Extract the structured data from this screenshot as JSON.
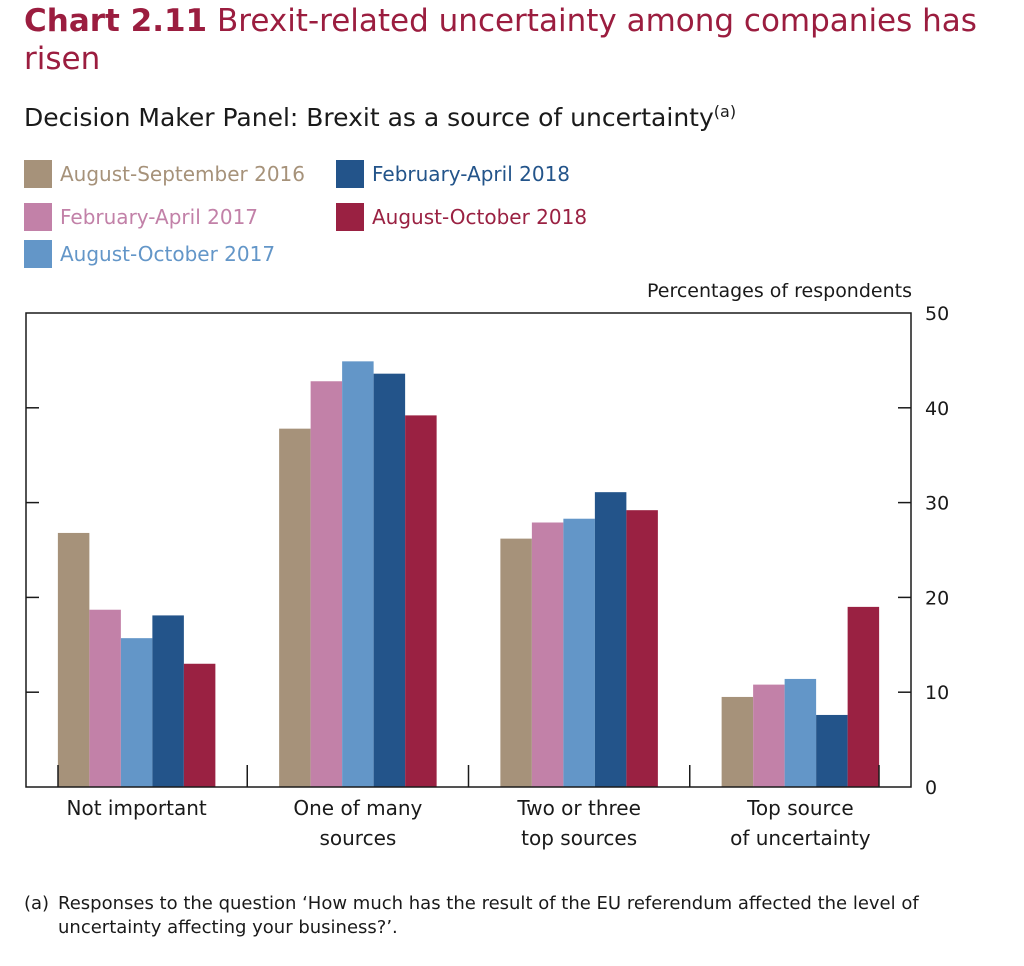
{
  "header": {
    "chart_number": "Chart 2.11",
    "title": "Brexit-related uncertainty among companies has risen",
    "subtitle": "Decision Maker Panel: Brexit as a source of uncertainty",
    "subtitle_note_marker": "(a)"
  },
  "footnote": {
    "marker": "(a)",
    "text": "Responses to the question ‘How much has the result of the EU referendum affected the level of uncertainty affecting your business?’."
  },
  "chart_data": {
    "type": "bar",
    "title": "Decision Maker Panel: Brexit as a source of uncertainty",
    "ylabel": "Percentages of respondents",
    "y_axis_side": "right",
    "ylim": [
      0,
      50
    ],
    "yticks": [
      0,
      10,
      20,
      30,
      40,
      50
    ],
    "grid": false,
    "legend_position": "top-left",
    "categories": [
      [
        "Not important"
      ],
      [
        "One of many",
        "sources"
      ],
      [
        "Two or three",
        "top sources"
      ],
      [
        "Top source",
        "of uncertainty"
      ]
    ],
    "series": [
      {
        "name": "August-September 2016",
        "color": "#a6927a",
        "values": [
          26.8,
          37.8,
          26.2,
          9.5
        ]
      },
      {
        "name": "February-April 2017",
        "color": "#c281a8",
        "values": [
          18.7,
          42.8,
          27.9,
          10.8
        ]
      },
      {
        "name": "August-October 2017",
        "color": "#6396c8",
        "values": [
          15.7,
          44.9,
          28.3,
          11.4
        ]
      },
      {
        "name": "February-April 2018",
        "color": "#23548a",
        "values": [
          18.1,
          43.6,
          31.1,
          7.6
        ]
      },
      {
        "name": "August-October 2018",
        "color": "#9a2142",
        "values": [
          13.0,
          39.2,
          29.2,
          19.0
        ]
      }
    ]
  }
}
